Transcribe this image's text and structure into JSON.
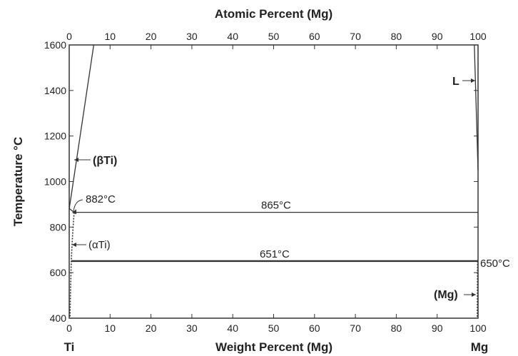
{
  "chart_data": {
    "type": "line",
    "title": "",
    "top_axis_label": "Atomic Percent (Mg)",
    "xlabel": "Weight Percent (Mg)",
    "ylabel": "Temperature °C",
    "xlim": [
      0,
      100
    ],
    "ylim": [
      400,
      1600
    ],
    "x_ticks": [
      0,
      10,
      20,
      30,
      40,
      50,
      60,
      70,
      80,
      90,
      100
    ],
    "y_ticks": [
      400,
      600,
      800,
      1000,
      1200,
      1400,
      1600
    ],
    "top_ticks": [
      0,
      10,
      20,
      30,
      40,
      50,
      60,
      70,
      80,
      90,
      100
    ],
    "grid": false,
    "left_element": "Ti",
    "right_element": "Mg",
    "series": [
      {
        "style": "solid",
        "x": [
          0,
          6
        ],
        "y": [
          880,
          1600
        ]
      },
      {
        "style": "solid",
        "x": [
          0,
          1.2
        ],
        "y": [
          882,
          865
        ]
      },
      {
        "style": "dotted",
        "x": [
          1.2,
          0.8,
          0.5,
          0.3,
          0.2
        ],
        "y": [
          865,
          760,
          651,
          500,
          400
        ]
      },
      {
        "style": "solid",
        "x": [
          99.1,
          100
        ],
        "y": [
          1600,
          1050
        ]
      },
      {
        "style": "dotted",
        "x": [
          99.9,
          99.85,
          99.8
        ],
        "y": [
          651,
          500,
          400
        ]
      }
    ],
    "horizontal_lines": [
      {
        "y": 865,
        "x_start": 1.2,
        "x_end": 100,
        "label": "865°C",
        "weight": "thin"
      },
      {
        "y": 651,
        "x_start": 0.5,
        "x_end": 100,
        "label": "651°C",
        "weight": "thick"
      }
    ],
    "annotations": [
      {
        "text": "(βTi)",
        "x": 1.7,
        "y": 1100,
        "arrow": true
      },
      {
        "text": "882°C",
        "x": 0.7,
        "y": 882,
        "arrow": true
      },
      {
        "text": "(αTi)",
        "x": 0.5,
        "y": 715,
        "arrow": true
      },
      {
        "text": "L",
        "x": 99.6,
        "y": 1450,
        "arrow": true
      },
      {
        "text": "650°C",
        "x": 100,
        "y": 651,
        "arrow": false
      },
      {
        "text": "(Mg)",
        "x": 99.85,
        "y": 500,
        "arrow": true
      }
    ]
  }
}
